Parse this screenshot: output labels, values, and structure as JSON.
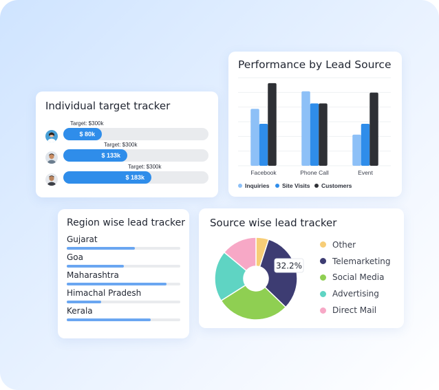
{
  "individual_tracker": {
    "title": "Individual target tracker",
    "people": [
      {
        "target": "Target: $300k",
        "value": "$ 80k",
        "progress": 0.267
      },
      {
        "target": "Target: $300k",
        "value": "$ 133k",
        "progress": 0.443
      },
      {
        "target": "Target: $300k",
        "value": "$ 183k",
        "progress": 0.61
      }
    ]
  },
  "performance": {
    "title": "Performance by Lead Source"
  },
  "chart_data": [
    {
      "type": "bar",
      "title": "Performance by Lead Source",
      "categories": [
        "Facebook",
        "Phone Call",
        "Event"
      ],
      "series": [
        {
          "name": "Inquiries",
          "color": "#8dc0f7",
          "values": [
            42,
            55,
            23
          ]
        },
        {
          "name": "Site Visits",
          "color": "#2f8dea",
          "values": [
            31,
            46,
            31
          ]
        },
        {
          "name": "Customers",
          "color": "#2e3035",
          "values": [
            61,
            46,
            54
          ]
        }
      ],
      "ylim": [
        0,
        65
      ],
      "grid": true,
      "legend": "bottom"
    },
    {
      "type": "pie",
      "title": "Source wise lead tracker",
      "series": [
        {
          "name": "Other",
          "color": "#f7cd77",
          "value": 5
        },
        {
          "name": "Telemarketing",
          "color": "#3d3c72",
          "value": 32.2
        },
        {
          "name": "Social Media",
          "color": "#8fcf52",
          "value": 28.8
        },
        {
          "name": "Advertising",
          "color": "#5fd4c3",
          "value": 20
        },
        {
          "name": "Direct Mail",
          "color": "#f7a8c6",
          "value": 14
        }
      ],
      "annotation": "32.2%",
      "legend": "right"
    }
  ],
  "region_tracker": {
    "title": "Region wise lead tracker",
    "regions": [
      {
        "name": "Gujarat",
        "progress": 0.6
      },
      {
        "name": "Goa",
        "progress": 0.5
      },
      {
        "name": "Maharashtra",
        "progress": 0.88
      },
      {
        "name": "Himachal Pradesh",
        "progress": 0.3
      },
      {
        "name": "Kerala",
        "progress": 0.74
      }
    ]
  },
  "source_tracker": {
    "title": "Source wise lead tracker"
  }
}
